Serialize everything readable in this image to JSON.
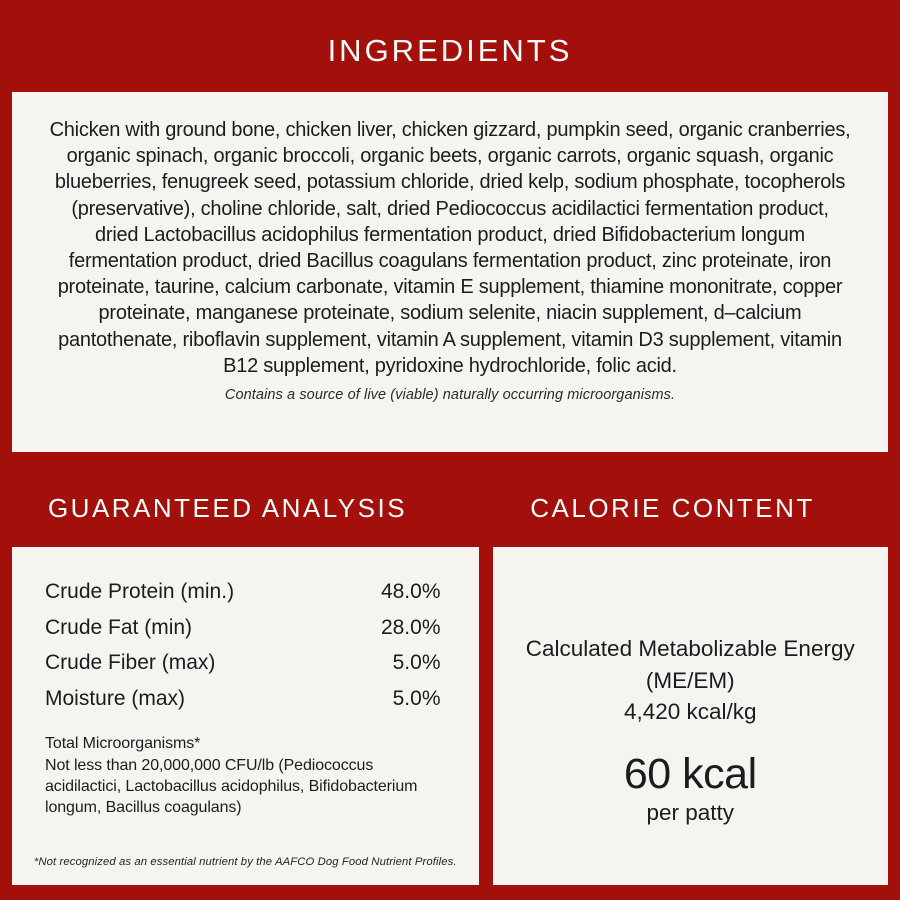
{
  "colors": {
    "background_red": "#A30F0B",
    "panel_offwhite": "#F5F4F0",
    "text_dark": "#1C1C1C",
    "heading_white": "#FDFDFB"
  },
  "header": {
    "title": "INGREDIENTS"
  },
  "ingredients": {
    "body": "Chicken with ground bone, chicken liver, chicken gizzard, pumpkin seed, organic cranberries, organic spinach, organic broccoli, organic beets, organic carrots, organic squash, organic blueberries, fenugreek seed, potassium chloride, dried kelp, sodium phosphate, tocopherols (preservative), choline chloride, salt, dried Pediococcus acidilactici fermentation product, dried Lactobacillus acidophilus fermentation product, dried Bifidobacterium longum fermentation product, dried Bacillus coagulans fermentation product, zinc proteinate, iron proteinate, taurine, calcium carbonate, vitamin E supplement, thiamine mononitrate, copper proteinate, manganese proteinate, sodium selenite, niacin supplement, d–calcium pantothenate, riboflavin supplement, vitamin A supplement, vitamin D3 supplement, vitamin B12 supplement, pyridoxine hydrochloride, folic acid.",
    "note": "Contains a source of live (viable) naturally occurring microorganisms."
  },
  "analysis": {
    "title": "GUARANTEED ANALYSIS",
    "rows": [
      {
        "label": "Crude Protein (min.)",
        "value": "48.0%"
      },
      {
        "label": "Crude Fat (min)",
        "value": "28.0%"
      },
      {
        "label": "Crude Fiber (max)",
        "value": "5.0%"
      },
      {
        "label": "Moisture (max)",
        "value": "5.0%"
      }
    ],
    "microorganisms_title": "Total Microorganisms*",
    "microorganisms_detail": "Not less than 20,000,000 CFU/lb (Pediococcus acidilactici, Lactobacillus acidophilus, Bifidobacterium longum, Bacillus coagulans)",
    "footnote": "*Not recognized as an essential nutrient by the AAFCO Dog Food Nutrient Profiles."
  },
  "calories": {
    "title": "CALORIE CONTENT",
    "description": "Calculated Metabolizable Energy (ME/EM)",
    "density": "4,420 kcal/kg",
    "big_value": "60 kcal",
    "unit_label": "per patty"
  }
}
